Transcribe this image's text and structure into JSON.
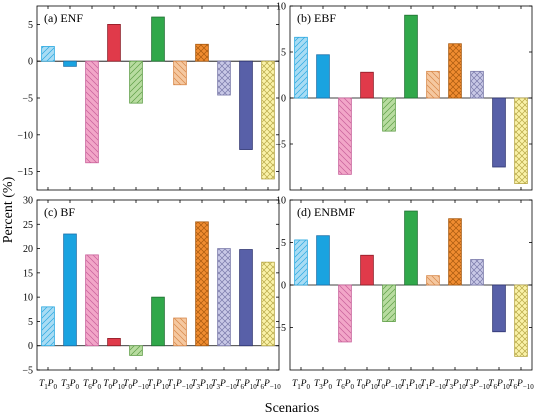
{
  "figure": {
    "ylabel": "Percent (%)",
    "xlabel": "Scenarios"
  },
  "scenarios": [
    {
      "T": "1",
      "P": "0"
    },
    {
      "T": "3",
      "P": "0"
    },
    {
      "T": "6",
      "P": "0"
    },
    {
      "T": "0",
      "P": "10"
    },
    {
      "T": "0",
      "P": "−10"
    },
    {
      "T": "1",
      "P": "10"
    },
    {
      "T": "1",
      "P": "−10"
    },
    {
      "T": "3",
      "P": "10"
    },
    {
      "T": "3",
      "P": "−10"
    },
    {
      "T": "6",
      "P": "10"
    },
    {
      "T": "6",
      "P": "−10"
    }
  ],
  "bar_styles": [
    {
      "fill": "#a8dcf4",
      "stroke": "#29a8e0",
      "pattern": "fwd"
    },
    {
      "fill": "#1aa3e0",
      "stroke": "#1a6fa8",
      "pattern": "none"
    },
    {
      "fill": "#f2a6c8",
      "stroke": "#c8609a",
      "pattern": "back"
    },
    {
      "fill": "#e03a4a",
      "stroke": "#8c1a24",
      "pattern": "none"
    },
    {
      "fill": "#b8dca0",
      "stroke": "#5e9e46",
      "pattern": "fwd"
    },
    {
      "fill": "#30a84a",
      "stroke": "#1e6e30",
      "pattern": "none"
    },
    {
      "fill": "#f5c8a0",
      "stroke": "#d8884a",
      "pattern": "back"
    },
    {
      "fill": "#f08c30",
      "stroke": "#a85a10",
      "pattern": "cross"
    },
    {
      "fill": "#c8c8e6",
      "stroke": "#7a7aaa",
      "pattern": "cross"
    },
    {
      "fill": "#5860a8",
      "stroke": "#2e3470",
      "pattern": "none"
    },
    {
      "fill": "#faf2a8",
      "stroke": "#b8a848",
      "pattern": "cross"
    }
  ],
  "chart_data": [
    {
      "type": "bar",
      "title": "(a) ENF",
      "ylim": [
        -17.5,
        7.5
      ],
      "yticks": [
        -15,
        -10,
        -5,
        0,
        5
      ],
      "values": [
        2,
        -0.7,
        -13.8,
        5,
        -5.7,
        6,
        -3.2,
        2.3,
        -4.6,
        -12,
        -16
      ]
    },
    {
      "type": "bar",
      "title": "(b) EBF",
      "ylim": [
        -10,
        10
      ],
      "yticks": [
        -5,
        0,
        5,
        10
      ],
      "values": [
        6.6,
        4.7,
        -8.3,
        2.8,
        -3.6,
        9,
        2.9,
        5.9,
        2.9,
        -7.5,
        -9.3
      ]
    },
    {
      "type": "bar",
      "title": "(c) BF",
      "ylim": [
        -5,
        30
      ],
      "yticks": [
        -5,
        0,
        5,
        10,
        15,
        20,
        25,
        30
      ],
      "values": [
        8,
        23,
        18.7,
        1.5,
        -2,
        10,
        5.7,
        25.5,
        20,
        19.8,
        17.2
      ]
    },
    {
      "type": "bar",
      "title": "(d) ENBMF",
      "ylim": [
        -10,
        10
      ],
      "yticks": [
        -5,
        0,
        5,
        10
      ],
      "values": [
        5.3,
        5.8,
        -6.7,
        3.5,
        -4.3,
        8.7,
        1.1,
        7.8,
        3,
        -5.5,
        -8.4
      ]
    }
  ]
}
